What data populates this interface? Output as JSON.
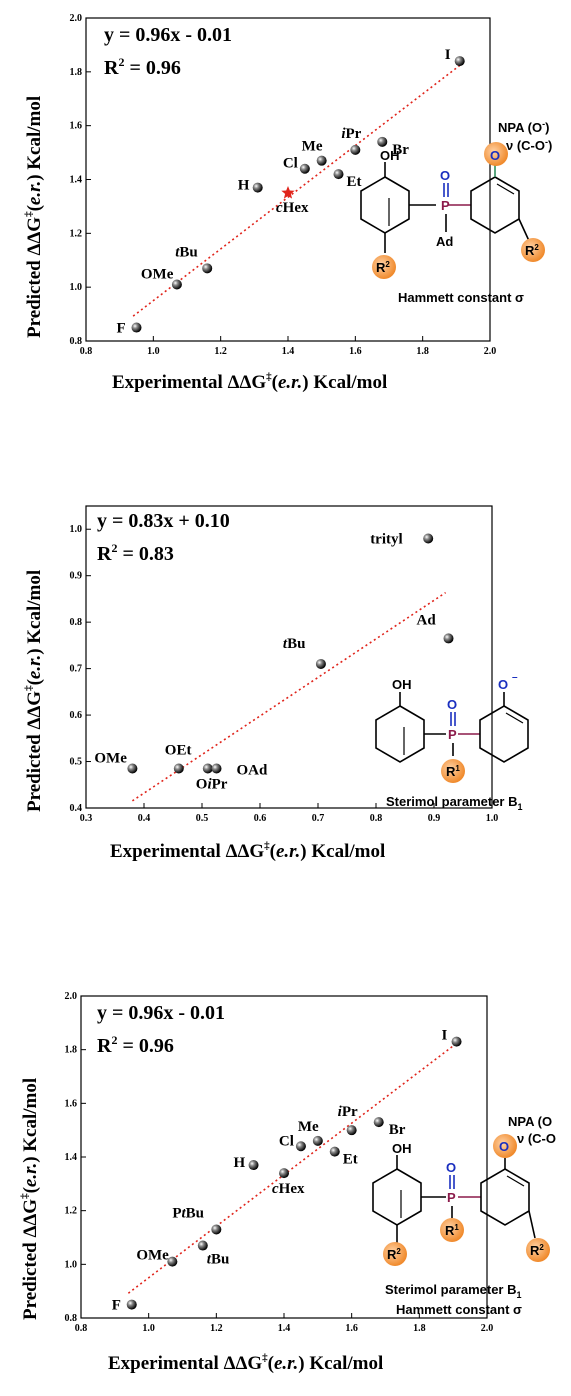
{
  "chart_data": [
    {
      "type": "scatter",
      "xlabel": "Experimental ΔΔG‡(e.r.) Kcal/mol",
      "ylabel": "Predicted ΔΔG‡(e.r.) Kcal/mol",
      "xlim": [
        0.8,
        2.0
      ],
      "ylim": [
        0.8,
        2.0
      ],
      "xticks": [
        "0.8",
        "1.0",
        "1.2",
        "1.4",
        "1.6",
        "1.8",
        "2.0"
      ],
      "yticks": [
        "0.8",
        "1.0",
        "1.2",
        "1.4",
        "1.6",
        "1.8",
        "2.0"
      ],
      "equation": "y = 0.96x - 0.01",
      "r2": "R² = 0.96",
      "fit": {
        "slope": 0.96,
        "intercept": -0.01,
        "x_range": [
          0.94,
          1.91
        ]
      },
      "points": [
        {
          "label": "F",
          "x": 0.95,
          "y": 0.85,
          "marker": "ball"
        },
        {
          "label": "OMe",
          "x": 1.07,
          "y": 1.01,
          "marker": "ball"
        },
        {
          "label": "tBu",
          "x": 1.16,
          "y": 1.07,
          "marker": "ball"
        },
        {
          "label": "H",
          "x": 1.31,
          "y": 1.37,
          "marker": "ball"
        },
        {
          "label": "cHex",
          "x": 1.4,
          "y": 1.35,
          "marker": "star"
        },
        {
          "label": "Cl",
          "x": 1.45,
          "y": 1.44,
          "marker": "ball"
        },
        {
          "label": "Me",
          "x": 1.5,
          "y": 1.47,
          "marker": "ball"
        },
        {
          "label": "Et",
          "x": 1.55,
          "y": 1.42,
          "marker": "ball"
        },
        {
          "label": "iPr",
          "x": 1.6,
          "y": 1.51,
          "marker": "ball"
        },
        {
          "label": "Br",
          "x": 1.68,
          "y": 1.54,
          "marker": "ball"
        },
        {
          "label": "I",
          "x": 1.91,
          "y": 1.84,
          "marker": "ball"
        }
      ],
      "descriptors": [
        "NPA (O⁻)",
        "ν (C-O⁻)",
        "Hammett constant σ"
      ]
    },
    {
      "type": "scatter",
      "xlabel": "Experimental ΔΔG‡(e.r.) Kcal/mol",
      "ylabel": "Predicted ΔΔG‡(e.r.) Kcal/mol",
      "xlim": [
        0.3,
        1.0
      ],
      "ylim": [
        0.4,
        1.05
      ],
      "xticks": [
        "0.3",
        "0.4",
        "0.5",
        "0.6",
        "0.7",
        "0.8",
        "0.9",
        "1.0"
      ],
      "yticks": [
        "0.4",
        "0.5",
        "0.6",
        "0.7",
        "0.8",
        "0.9",
        "1.0"
      ],
      "equation": "y = 0.83x + 0.10",
      "r2": "R² = 0.83",
      "fit": {
        "slope": 0.83,
        "intercept": 0.1,
        "x_range": [
          0.38,
          0.92
        ]
      },
      "points": [
        {
          "label": "OMe",
          "x": 0.38,
          "y": 0.485,
          "marker": "ball"
        },
        {
          "label": "OEt",
          "x": 0.46,
          "y": 0.485,
          "marker": "ball"
        },
        {
          "label": "OiPr",
          "x": 0.51,
          "y": 0.485,
          "marker": "ball"
        },
        {
          "label": "OAd",
          "x": 0.525,
          "y": 0.485,
          "marker": "ball"
        },
        {
          "label": "tBu",
          "x": 0.705,
          "y": 0.71,
          "marker": "ball"
        },
        {
          "label": "Ad",
          "x": 0.925,
          "y": 0.765,
          "marker": "ball"
        },
        {
          "label": "trityl",
          "x": 0.89,
          "y": 0.98,
          "marker": "ball"
        }
      ],
      "descriptors": [
        "Sterimol parameter B₁"
      ]
    },
    {
      "type": "scatter",
      "xlabel": "Experimental ΔΔG‡(e.r.) Kcal/mol",
      "ylabel": "Predicted ΔΔG‡(e.r.) Kcal/mol",
      "xlim": [
        0.8,
        2.0
      ],
      "ylim": [
        0.8,
        2.0
      ],
      "xticks": [
        "0.8",
        "1.0",
        "1.2",
        "1.4",
        "1.6",
        "1.8",
        "2.0"
      ],
      "yticks": [
        "0.8",
        "1.0",
        "1.2",
        "1.4",
        "1.6",
        "1.8",
        "2.0"
      ],
      "equation": "y = 0.96x - 0.01",
      "r2": "R² = 0.96",
      "fit": {
        "slope": 0.96,
        "intercept": -0.01,
        "x_range": [
          0.94,
          1.91
        ]
      },
      "points": [
        {
          "label": "F",
          "x": 0.95,
          "y": 0.85,
          "marker": "ball"
        },
        {
          "label": "OMe",
          "x": 1.07,
          "y": 1.01,
          "marker": "ball"
        },
        {
          "label": "tBu",
          "x": 1.16,
          "y": 1.07,
          "marker": "ball"
        },
        {
          "label": "PtBu",
          "x": 1.2,
          "y": 1.13,
          "marker": "ball"
        },
        {
          "label": "H",
          "x": 1.31,
          "y": 1.37,
          "marker": "ball"
        },
        {
          "label": "cHex",
          "x": 1.4,
          "y": 1.34,
          "marker": "ball"
        },
        {
          "label": "Cl",
          "x": 1.45,
          "y": 1.44,
          "marker": "ball"
        },
        {
          "label": "Me",
          "x": 1.5,
          "y": 1.46,
          "marker": "ball"
        },
        {
          "label": "Et",
          "x": 1.55,
          "y": 1.42,
          "marker": "ball"
        },
        {
          "label": "iPr",
          "x": 1.6,
          "y": 1.5,
          "marker": "ball"
        },
        {
          "label": "Br",
          "x": 1.68,
          "y": 1.53,
          "marker": "ball"
        },
        {
          "label": "I",
          "x": 1.91,
          "y": 1.83,
          "marker": "ball"
        }
      ],
      "descriptors": [
        "NPA (O",
        "ν (C-O",
        "Sterimol parameter B₁",
        "Hammett constant σ"
      ]
    }
  ],
  "structures": {
    "atom_OH": "OH",
    "atom_O": "O",
    "atom_P": "P",
    "atom_O_minus": "O",
    "sub_Ad": "Ad",
    "sub_R1": "R",
    "sub_R1_sup": "1",
    "sub_R2": "R",
    "sub_R2_sup": "2"
  },
  "colors": {
    "fit_line": "#e0241b",
    "phosphorus": "#8b1a4a",
    "oxygen": "#1a2fbf",
    "highlight": "#f39a46",
    "star": "#e0241b"
  }
}
